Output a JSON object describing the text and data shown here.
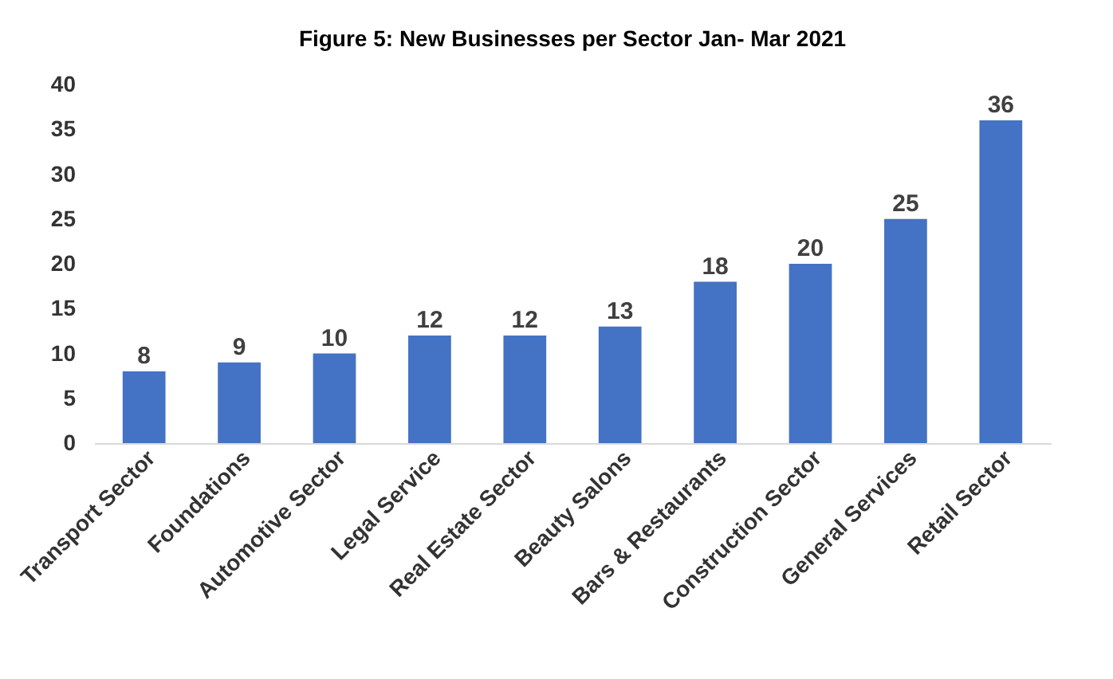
{
  "chart_data": {
    "type": "bar",
    "title": "Figure 5: New Businesses per Sector Jan- Mar 2021",
    "categories": [
      "Transport Sector",
      "Foundations",
      "Automotive Sector",
      "Legal Service",
      "Real Estate Sector",
      "Beauty Salons",
      "Bars & Restaurants",
      "Construction Sector",
      "General Services",
      "Retail Sector"
    ],
    "values": [
      8,
      9,
      10,
      12,
      12,
      13,
      18,
      20,
      25,
      36
    ],
    "color": "#4472c4",
    "ylim": [
      0,
      40
    ],
    "yticks": [
      0,
      5,
      10,
      15,
      20,
      25,
      30,
      35,
      40
    ],
    "grid": false,
    "data_labels": true
  }
}
